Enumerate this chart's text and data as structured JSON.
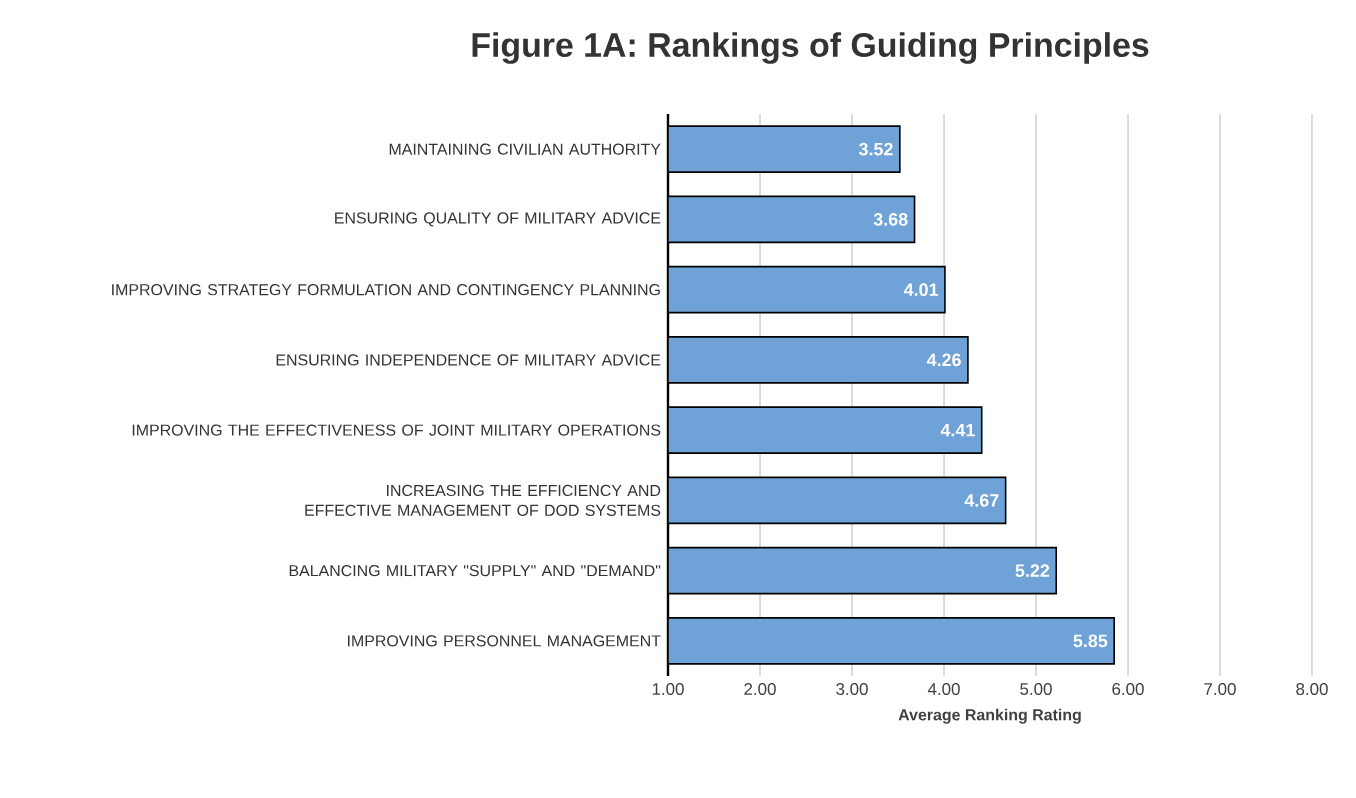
{
  "chart_data": {
    "type": "bar",
    "orientation": "horizontal",
    "title": "Figure 1A: Rankings of Guiding Principles",
    "xlabel": "Average Ranking Rating",
    "categories": [
      "MAINTAINING CIVILIAN AUTHORITY",
      "ENSURING QUALITY OF MILITARY ADVICE",
      "IMPROVING STRATEGY FORMULATION AND CONTINGENCY PLANNING",
      "ENSURING INDEPENDENCE OF MILITARY ADVICE",
      "IMPROVING THE EFFECTIVENESS OF JOINT MILITARY OPERATIONS",
      "INCREASING THE EFFICIENCY AND EFFECTIVE MANAGEMENT OF DOD SYSTEMS",
      "BALANCING MILITARY \"SUPPLY\" AND \"DEMAND\"",
      "IMPROVING PERSONNEL MANAGEMENT"
    ],
    "values": [
      3.52,
      3.68,
      4.01,
      4.26,
      4.41,
      4.67,
      5.22,
      5.85
    ],
    "color": "#6fa3d8",
    "xlim": [
      1,
      8
    ],
    "xticks": [
      {
        "value": 1,
        "label": "1.00"
      },
      {
        "value": 2,
        "label": "2.00"
      },
      {
        "value": 3,
        "label": "3.00"
      },
      {
        "value": 4,
        "label": "4.00"
      },
      {
        "value": 5,
        "label": "5.00"
      },
      {
        "value": 6,
        "label": "6.00"
      },
      {
        "value": 7,
        "label": "7.00"
      },
      {
        "value": 8,
        "label": "8.00"
      }
    ],
    "grid": "x",
    "data_labels": true
  }
}
